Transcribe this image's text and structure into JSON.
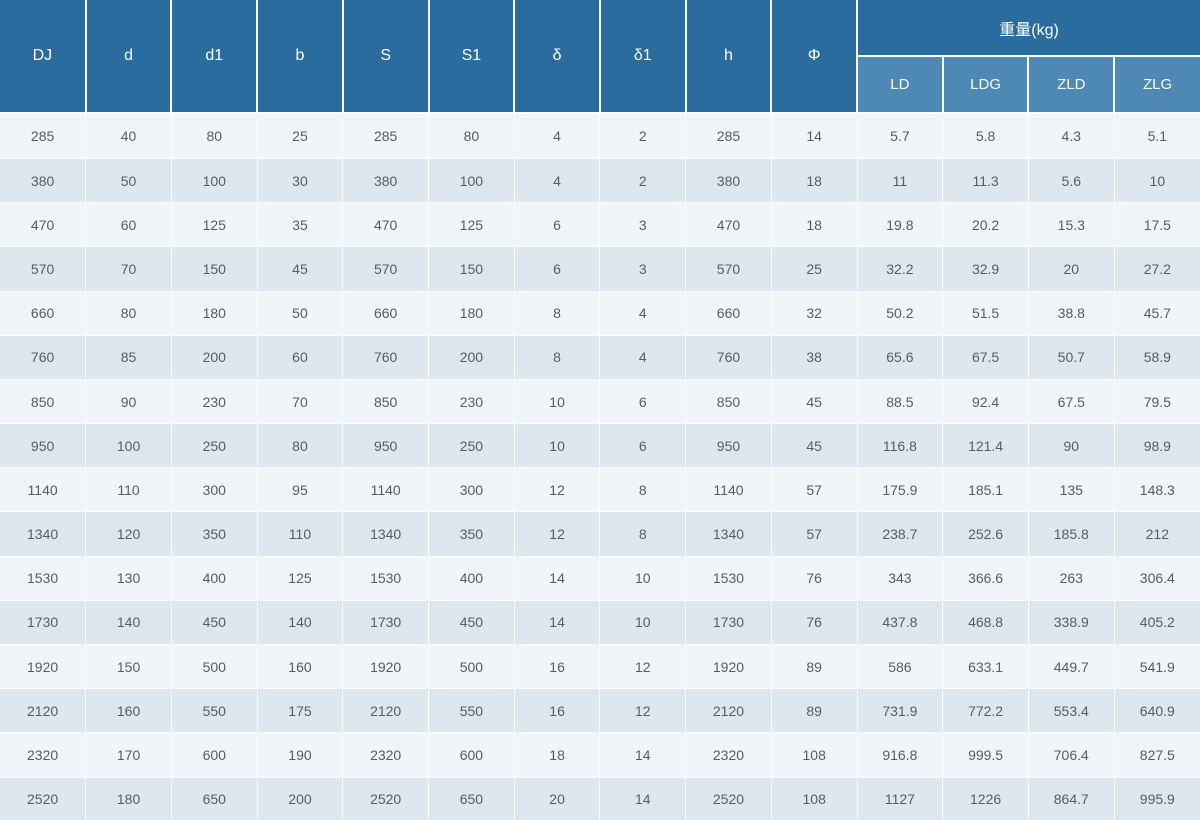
{
  "colors": {
    "header_bg": "#2a6c9e",
    "subheader_bg": "#4e88b4",
    "row_odd_bg": "#f1f5f9",
    "row_even_bg": "#dde7f0",
    "grid_line": "#ffffff",
    "header_text": "#ffffff",
    "body_text": "#595c5f"
  },
  "chart_data": {
    "type": "table",
    "columns": [
      "DJ",
      "d",
      "d1",
      "b",
      "S",
      "S1",
      "δ",
      "δ1",
      "h",
      "Φ",
      "LD",
      "LDG",
      "ZLD",
      "ZLG"
    ],
    "group_label": "重量(kg)",
    "group_columns": [
      "LD",
      "LDG",
      "ZLD",
      "ZLG"
    ],
    "rows": [
      [
        "285",
        "40",
        "80",
        "25",
        "285",
        "80",
        "4",
        "2",
        "285",
        "14",
        "5.7",
        "5.8",
        "4.3",
        "5.1"
      ],
      [
        "380",
        "50",
        "100",
        "30",
        "380",
        "100",
        "4",
        "2",
        "380",
        "18",
        "11",
        "11.3",
        "5.6",
        "10"
      ],
      [
        "470",
        "60",
        "125",
        "35",
        "470",
        "125",
        "6",
        "3",
        "470",
        "18",
        "19.8",
        "20.2",
        "15.3",
        "17.5"
      ],
      [
        "570",
        "70",
        "150",
        "45",
        "570",
        "150",
        "6",
        "3",
        "570",
        "25",
        "32.2",
        "32.9",
        "20",
        "27.2"
      ],
      [
        "660",
        "80",
        "180",
        "50",
        "660",
        "180",
        "8",
        "4",
        "660",
        "32",
        "50.2",
        "51.5",
        "38.8",
        "45.7"
      ],
      [
        "760",
        "85",
        "200",
        "60",
        "760",
        "200",
        "8",
        "4",
        "760",
        "38",
        "65.6",
        "67.5",
        "50.7",
        "58.9"
      ],
      [
        "850",
        "90",
        "230",
        "70",
        "850",
        "230",
        "10",
        "6",
        "850",
        "45",
        "88.5",
        "92.4",
        "67.5",
        "79.5"
      ],
      [
        "950",
        "100",
        "250",
        "80",
        "950",
        "250",
        "10",
        "6",
        "950",
        "45",
        "116.8",
        "121.4",
        "90",
        "98.9"
      ],
      [
        "1140",
        "110",
        "300",
        "95",
        "1140",
        "300",
        "12",
        "8",
        "1140",
        "57",
        "175.9",
        "185.1",
        "135",
        "148.3"
      ],
      [
        "1340",
        "120",
        "350",
        "110",
        "1340",
        "350",
        "12",
        "8",
        "1340",
        "57",
        "238.7",
        "252.6",
        "185.8",
        "212"
      ],
      [
        "1530",
        "130",
        "400",
        "125",
        "1530",
        "400",
        "14",
        "10",
        "1530",
        "76",
        "343",
        "366.6",
        "263",
        "306.4"
      ],
      [
        "1730",
        "140",
        "450",
        "140",
        "1730",
        "450",
        "14",
        "10",
        "1730",
        "76",
        "437.8",
        "468.8",
        "338.9",
        "405.2"
      ],
      [
        "1920",
        "150",
        "500",
        "160",
        "1920",
        "500",
        "16",
        "12",
        "1920",
        "89",
        "586",
        "633.1",
        "449.7",
        "541.9"
      ],
      [
        "2120",
        "160",
        "550",
        "175",
        "2120",
        "550",
        "16",
        "12",
        "2120",
        "89",
        "731.9",
        "772.2",
        "553.4",
        "640.9"
      ],
      [
        "2320",
        "170",
        "600",
        "190",
        "2320",
        "600",
        "18",
        "14",
        "2320",
        "108",
        "916.8",
        "999.5",
        "706.4",
        "827.5"
      ],
      [
        "2520",
        "180",
        "650",
        "200",
        "2520",
        "650",
        "20",
        "14",
        "2520",
        "108",
        "1127",
        "1226",
        "864.7",
        "995.9"
      ]
    ]
  }
}
